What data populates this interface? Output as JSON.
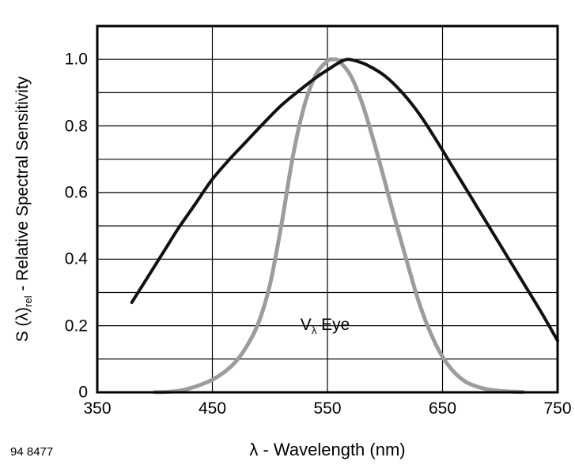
{
  "figure": {
    "id": "94 8477"
  },
  "y_axis": {
    "label_prefix": "S (λ)",
    "label_sub": "rel",
    "label_suffix": " - Relative Spectral Sensitivity"
  },
  "x_axis": {
    "label": "λ - Wavelength (nm)"
  },
  "annotation": {
    "prefix": "V",
    "sub": "λ",
    "suffix": " Eye"
  },
  "chart_data": {
    "type": "line",
    "title": "",
    "xlabel": "λ - Wavelength (nm)",
    "ylabel": "S (λ)rel - Relative Spectral Sensitivity",
    "xlim": [
      350,
      750
    ],
    "ylim": [
      0,
      1.1
    ],
    "x_ticks": [
      350,
      450,
      550,
      650,
      750
    ],
    "x_tick_labels": [
      "350",
      "450",
      "550",
      "650",
      "750"
    ],
    "y_ticks": [
      1.0,
      0.8,
      0.6,
      0.4,
      0.2,
      0
    ],
    "y_tick_labels": [
      "1.0",
      "0.8",
      "0.6",
      "0.4",
      "0.2",
      "0"
    ],
    "grid": {
      "x_step": 100,
      "y_step": 0.1,
      "visible": true
    },
    "legend": "none",
    "series": [
      {
        "name": "eye-sensitivity-V-lambda-gray-curve",
        "color": "#9c9c9c",
        "stroke_width": 5,
        "points": [
          [
            400,
            0.0004
          ],
          [
            410,
            0.0012
          ],
          [
            420,
            0.004
          ],
          [
            430,
            0.0116
          ],
          [
            440,
            0.023
          ],
          [
            450,
            0.038
          ],
          [
            460,
            0.06
          ],
          [
            470,
            0.091
          ],
          [
            480,
            0.139
          ],
          [
            490,
            0.208
          ],
          [
            500,
            0.323
          ],
          [
            510,
            0.503
          ],
          [
            520,
            0.71
          ],
          [
            530,
            0.862
          ],
          [
            540,
            0.954
          ],
          [
            550,
            0.995
          ],
          [
            555,
            1.0
          ],
          [
            560,
            0.995
          ],
          [
            570,
            0.952
          ],
          [
            580,
            0.87
          ],
          [
            590,
            0.757
          ],
          [
            600,
            0.631
          ],
          [
            610,
            0.503
          ],
          [
            620,
            0.381
          ],
          [
            630,
            0.265
          ],
          [
            640,
            0.175
          ],
          [
            650,
            0.107
          ],
          [
            660,
            0.061
          ],
          [
            670,
            0.032
          ],
          [
            680,
            0.017
          ],
          [
            690,
            0.0082
          ],
          [
            700,
            0.0041
          ],
          [
            710,
            0.0021
          ],
          [
            720,
            0.001
          ]
        ]
      },
      {
        "name": "detector-spectral-sensitivity-black-curve",
        "color": "#111111",
        "stroke_width": 4,
        "points": [
          [
            380,
            0.27
          ],
          [
            390,
            0.325
          ],
          [
            400,
            0.38
          ],
          [
            410,
            0.435
          ],
          [
            420,
            0.49
          ],
          [
            435,
            0.565
          ],
          [
            450,
            0.64
          ],
          [
            465,
            0.7
          ],
          [
            480,
            0.755
          ],
          [
            495,
            0.81
          ],
          [
            510,
            0.862
          ],
          [
            525,
            0.905
          ],
          [
            540,
            0.945
          ],
          [
            550,
            0.968
          ],
          [
            560,
            0.99
          ],
          [
            567,
            1.0
          ],
          [
            575,
            0.995
          ],
          [
            585,
            0.982
          ],
          [
            600,
            0.95
          ],
          [
            615,
            0.9
          ],
          [
            630,
            0.835
          ],
          [
            645,
            0.755
          ],
          [
            660,
            0.67
          ],
          [
            675,
            0.585
          ],
          [
            690,
            0.5
          ],
          [
            705,
            0.415
          ],
          [
            720,
            0.33
          ],
          [
            735,
            0.245
          ],
          [
            750,
            0.155
          ]
        ]
      }
    ],
    "annotations": [
      {
        "text": "Vλ Eye",
        "x": 548,
        "y": 0.2
      }
    ]
  }
}
